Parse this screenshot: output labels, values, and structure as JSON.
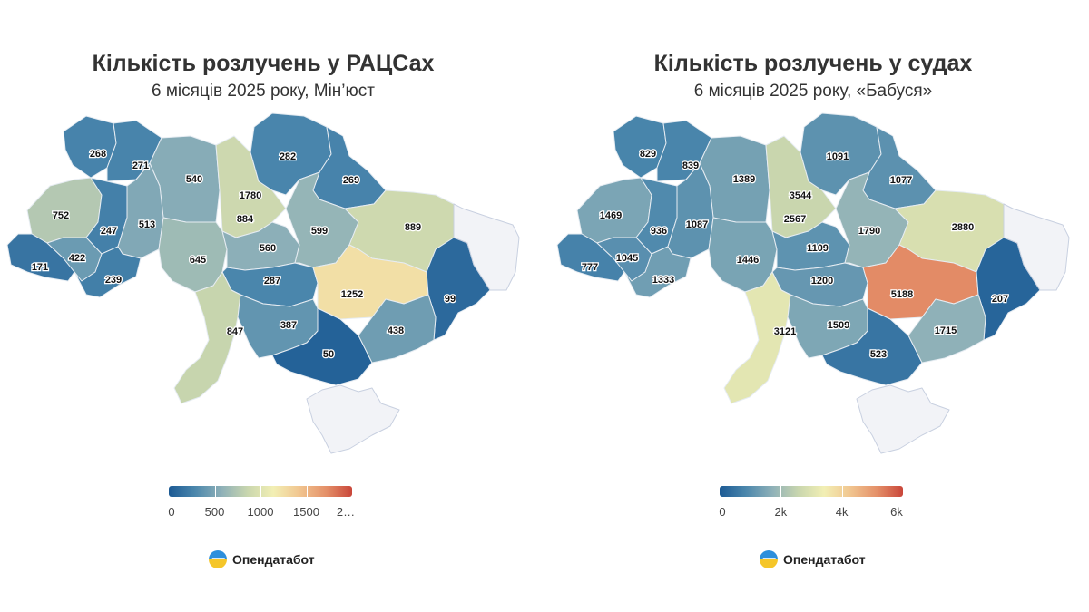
{
  "charts": [
    {
      "title": "Кількість розлучень у РАЦСах",
      "subtitle": "6 місяців 2025 року, Мін’юст",
      "legend": {
        "ticks": [
          "0",
          "500",
          "1000",
          "1500",
          "2…"
        ],
        "min": 0,
        "max": 2000
      },
      "brand": "Опендатабот"
    },
    {
      "title": "Кількість розлучень у судах",
      "subtitle": "6 місяців 2025 року, «Бабуся»",
      "legend": {
        "ticks": [
          "0",
          "2k",
          "4k",
          "6k"
        ],
        "min": 0,
        "max": 6000
      },
      "brand": "Опендатабот"
    }
  ],
  "colors": {
    "scale": [
      "#1c5a94",
      "#4a86ac",
      "#8fb1b8",
      "#c9d6ae",
      "#f2efb4",
      "#f1c690",
      "#e48f68",
      "#c9463a"
    ],
    "nodata": "#f2f3f7"
  },
  "chart_data": [
    {
      "type": "choropleth",
      "title": "Кількість розлучень у РАЦСах",
      "subtitle": "6 місяців 2025 року, Мін’юст",
      "legend_range": [
        0,
        2000
      ],
      "legend_ticks": [
        "0",
        "500",
        "1000",
        "1500",
        "2…"
      ],
      "regions": {
        "Volyn": 268,
        "Rivne": 271,
        "Zhytomyr": 540,
        "Kyiv city": 1780,
        "Kyiv oblast": 884,
        "Chernihiv": 282,
        "Sumy": 269,
        "Lviv": 752,
        "Ternopil": 247,
        "Khmelnytskyi": 513,
        "Vinnytsia": 645,
        "Zakarpattia": 171,
        "Ivano-Frankivsk": 422,
        "Chernivtsi": 239,
        "Cherkasy": 560,
        "Poltava": 599,
        "Kharkiv": 889,
        "Kirovohrad": 287,
        "Dnipropetrovsk": 1252,
        "Donetsk": 99,
        "Luhansk": null,
        "Odesa": 847,
        "Mykolaiv": 387,
        "Kherson": 50,
        "Zaporizhzhia": 438,
        "Crimea": null
      }
    },
    {
      "type": "choropleth",
      "title": "Кількість розлучень у судах",
      "subtitle": "6 місяців 2025 року, «Бабуся»",
      "legend_range": [
        0,
        6000
      ],
      "legend_ticks": [
        "0",
        "2k",
        "4k",
        "6k"
      ],
      "regions": {
        "Volyn": 829,
        "Rivne": 839,
        "Zhytomyr": 1389,
        "Kyiv city": 3544,
        "Kyiv oblast": 2567,
        "Chernihiv": 1091,
        "Sumy": 1077,
        "Lviv": 1469,
        "Ternopil": 936,
        "Khmelnytskyi": 1087,
        "Vinnytsia": 1446,
        "Zakarpattia": 777,
        "Ivano-Frankivsk": 1045,
        "Chernivtsi": 1333,
        "Cherkasy": 1109,
        "Poltava": 1790,
        "Kharkiv": 2880,
        "Kirovohrad": 1200,
        "Dnipropetrovsk": 5188,
        "Donetsk": 207,
        "Luhansk": null,
        "Odesa": 3121,
        "Mykolaiv": 1509,
        "Kherson": 523,
        "Zaporizhzhia": 1715,
        "Crimea": null
      }
    }
  ]
}
